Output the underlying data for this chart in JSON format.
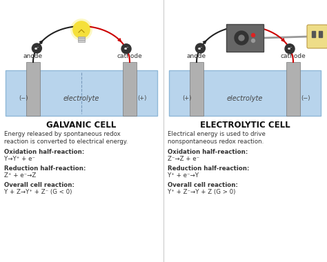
{
  "bg_color": "#ffffff",
  "divider_color": "#cccccc",
  "water_color": "#b8d4ec",
  "electrode_color": "#b0b0b0",
  "title_left": "GALVANIC CELL",
  "title_right": "ELECTROLYTIC CELL",
  "desc_left": "Energy released by spontaneous redox\nreaction is converted to electrical energy.",
  "desc_right": "Electrical energy is used to drive\nnonspontaneous redox reaction.",
  "left_sections": [
    [
      "Oxidation half-reaction:",
      "Y→Y⁺ + e⁻"
    ],
    [
      "Reduction half-reaction:",
      "Z⁺ + e⁻→Z"
    ],
    [
      "Overall cell reaction:",
      "Y + Z→Y⁺ + Z⁻ (G < 0)"
    ]
  ],
  "right_sections": [
    [
      "Oxidation half-reaction:",
      "Z⁻→Z + e⁻"
    ],
    [
      "Reduction half-reaction:",
      "Y⁺ + e⁻→Y"
    ],
    [
      "Overall cell reaction:",
      "Y⁺ + Z⁻→Y + Z (G > 0)"
    ]
  ],
  "text_color": "#333333",
  "bold_color": "#111111",
  "red_wire": "#cc0000",
  "black_wire": "#222222",
  "label_color": "#444444",
  "bath_border": "#90b8d8",
  "electrode_border": "#777777"
}
